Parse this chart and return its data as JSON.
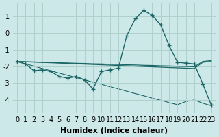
{
  "xlabel": "Humidex (Indice chaleur)",
  "background_color": "#cde8e8",
  "grid_color": "#b0d0cc",
  "line_color": "#1a6666",
  "x_values": [
    0,
    1,
    2,
    3,
    4,
    5,
    6,
    7,
    8,
    9,
    10,
    11,
    12,
    13,
    14,
    15,
    16,
    17,
    18,
    19,
    20,
    21,
    22,
    23
  ],
  "curve_main": [
    -1.7,
    -1.85,
    -2.25,
    -2.2,
    -2.3,
    -2.6,
    -2.7,
    -2.6,
    -2.8,
    -3.35,
    -2.3,
    -2.2,
    -2.1,
    -0.15,
    0.85,
    1.35,
    1.05,
    0.5,
    -0.75,
    -1.75,
    -1.8,
    -1.85,
    -3.05,
    -4.3
  ],
  "curve_upper": [
    -1.7,
    -1.72,
    -1.73,
    -1.75,
    -1.76,
    -1.78,
    -1.79,
    -1.81,
    -1.82,
    -1.84,
    -1.85,
    -1.87,
    -1.88,
    -1.9,
    -1.91,
    -1.93,
    -1.94,
    -1.96,
    -1.97,
    -1.99,
    -2.0,
    -2.02,
    -1.7,
    -1.65
  ],
  "curve_mid": [
    -1.7,
    -1.72,
    -1.74,
    -1.76,
    -1.78,
    -1.8,
    -1.82,
    -1.84,
    -1.86,
    -1.88,
    -1.9,
    -1.92,
    -1.94,
    -1.96,
    -1.98,
    -2.0,
    -2.02,
    -2.04,
    -2.06,
    -2.08,
    -2.1,
    -2.12,
    -1.75,
    -1.7
  ],
  "curve_diag": [
    -1.7,
    -1.84,
    -1.98,
    -2.12,
    -2.25,
    -2.4,
    -2.53,
    -2.67,
    -2.8,
    -2.94,
    -3.07,
    -3.21,
    -3.34,
    -3.48,
    -3.62,
    -3.75,
    -3.89,
    -4.02,
    -4.16,
    -4.29,
    -4.1,
    -4.0,
    -4.2,
    -4.35
  ],
  "xlim": [
    -0.5,
    23.5
  ],
  "ylim": [
    -4.8,
    1.8
  ],
  "yticks": [
    -4,
    -3,
    -2,
    -1,
    0,
    1
  ],
  "xticks": [
    0,
    1,
    2,
    3,
    4,
    5,
    6,
    7,
    8,
    9,
    10,
    11,
    12,
    13,
    14,
    15,
    16,
    17,
    18,
    19,
    20,
    21,
    22,
    23
  ],
  "fontsize_label": 8,
  "fontsize_tick": 7
}
